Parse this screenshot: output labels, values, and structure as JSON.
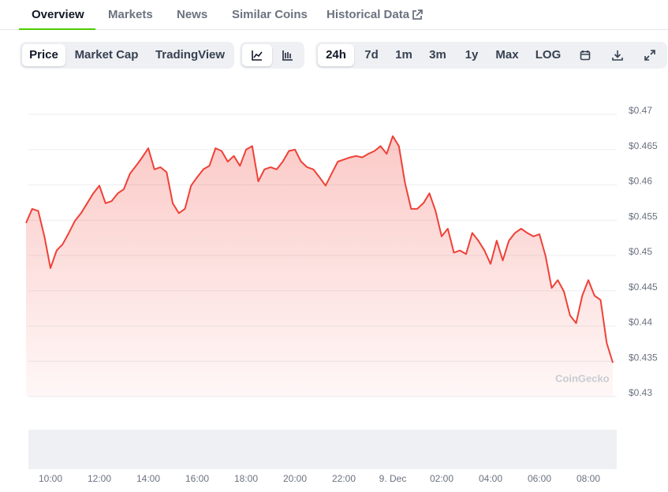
{
  "tabs": [
    "Overview",
    "Markets",
    "News",
    "Similar Coins",
    "Historical Data"
  ],
  "chart_tabs": [
    "Price",
    "Market Cap",
    "TradingView"
  ],
  "ranges": [
    "24h",
    "7d",
    "1m",
    "3m",
    "1y",
    "Max",
    "LOG"
  ],
  "chart_data": {
    "type": "line",
    "watermark": "CoinGecko",
    "color": "#ef4137",
    "values": [
      0.4546,
      0.4566,
      0.4563,
      0.4527,
      0.4482,
      0.4507,
      0.4516,
      0.4532,
      0.4549,
      0.456,
      0.4574,
      0.4588,
      0.4599,
      0.4574,
      0.4577,
      0.4588,
      0.4594,
      0.4616,
      0.4627,
      0.4639,
      0.4652,
      0.4622,
      0.4625,
      0.4618,
      0.4574,
      0.456,
      0.4566,
      0.4599,
      0.4611,
      0.4622,
      0.4627,
      0.4652,
      0.4648,
      0.4633,
      0.4641,
      0.4627,
      0.465,
      0.4655,
      0.4605,
      0.4622,
      0.4625,
      0.4622,
      0.4633,
      0.4648,
      0.465,
      0.4633,
      0.4625,
      0.4622,
      0.4611,
      0.4599,
      0.4616,
      0.4633,
      0.4636,
      0.4639,
      0.4641,
      0.4639,
      0.4644,
      0.4648,
      0.4655,
      0.4644,
      0.4669,
      0.4655,
      0.4603,
      0.4566,
      0.4566,
      0.4574,
      0.4588,
      0.4563,
      0.4527,
      0.4538,
      0.4504,
      0.4507,
      0.4502,
      0.4532,
      0.4521,
      0.4507,
      0.4488,
      0.4521,
      0.4493,
      0.4521,
      0.4532,
      0.4538,
      0.4532,
      0.4527,
      0.453,
      0.4499,
      0.4454,
      0.4465,
      0.4449,
      0.4415,
      0.4404,
      0.4443,
      0.4465,
      0.4443,
      0.4437,
      0.4376,
      0.4348
    ],
    "xlim": [
      0,
      96
    ],
    "xticks": [
      {
        "value": 4,
        "label": "10:00"
      },
      {
        "value": 12,
        "label": "12:00"
      },
      {
        "value": 20,
        "label": "14:00"
      },
      {
        "value": 28,
        "label": "16:00"
      },
      {
        "value": 36,
        "label": "18:00"
      },
      {
        "value": 44,
        "label": "20:00"
      },
      {
        "value": 52,
        "label": "22:00"
      },
      {
        "value": 60,
        "label": "9. Dec"
      },
      {
        "value": 68,
        "label": "02:00"
      },
      {
        "value": 76,
        "label": "04:00"
      },
      {
        "value": 84,
        "label": "06:00"
      },
      {
        "value": 92,
        "label": "08:00"
      }
    ],
    "ylim": [
      0.43,
      0.47
    ],
    "yticks": [
      {
        "value": 0.47,
        "label": "$0.47"
      },
      {
        "value": 0.465,
        "label": "$0.465"
      },
      {
        "value": 0.46,
        "label": "$0.46"
      },
      {
        "value": 0.455,
        "label": "$0.455"
      },
      {
        "value": 0.45,
        "label": "$0.45"
      },
      {
        "value": 0.445,
        "label": "$0.445"
      },
      {
        "value": 0.44,
        "label": "$0.44"
      },
      {
        "value": 0.435,
        "label": "$0.435"
      },
      {
        "value": 0.43,
        "label": "$0.43"
      }
    ],
    "grid": true
  }
}
